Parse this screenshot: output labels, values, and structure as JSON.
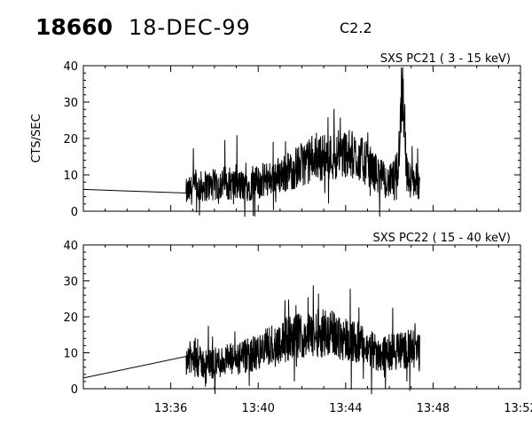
{
  "header": {
    "event_id": "18660",
    "date": "18-DEC-99",
    "flare_class": "C2.2"
  },
  "chart_data": [
    {
      "type": "line",
      "title": "SXS PC21  (  3 - 15 keV)",
      "ylabel": "CTS/SEC",
      "xlabel": "",
      "x_unit": "minutes after 13:32",
      "xlim": [
        0,
        20
      ],
      "ylim": [
        0,
        40
      ],
      "yticks": [
        0,
        10,
        20,
        30,
        40
      ],
      "grid": false,
      "series": [
        {
          "x": [
            0,
            4.7,
            5.0,
            5.5,
            6.0,
            6.5,
            7.0,
            7.5,
            8.0,
            8.5,
            9.0,
            9.5,
            10.0,
            10.5,
            11.0,
            11.5,
            12.0,
            12.5,
            13.0,
            13.3,
            13.5,
            13.7,
            13.9,
            14.0,
            14.2,
            14.4,
            14.6,
            14.8,
            15.0,
            15.2,
            15.4
          ],
          "y": [
            6,
            5,
            6,
            7,
            7,
            8,
            7,
            7,
            8,
            9,
            10,
            11,
            13,
            14,
            15,
            15,
            16,
            15,
            13,
            11,
            10,
            9,
            8,
            8,
            9,
            12,
            38,
            10,
            8,
            9,
            7
          ]
        }
      ]
    },
    {
      "type": "line",
      "title": "SXS PC22  ( 15 - 40 keV)",
      "ylabel": "",
      "xlabel": "",
      "x_unit": "minutes after 13:32",
      "xlim": [
        0,
        20
      ],
      "ylim": [
        0,
        40
      ],
      "yticks": [
        0,
        10,
        20,
        30,
        40
      ],
      "xtick_labels": [
        "13:36",
        "13:40",
        "13:44",
        "13:48",
        "13:52"
      ],
      "grid": false,
      "series": [
        {
          "x": [
            0,
            4.7,
            5.0,
            5.5,
            6.0,
            6.5,
            7.0,
            7.5,
            8.0,
            8.5,
            9.0,
            9.5,
            10.0,
            10.5,
            11.0,
            11.5,
            12.0,
            12.5,
            13.0,
            13.5,
            14.0,
            14.5,
            15.0,
            15.4
          ],
          "y": [
            3,
            9,
            8,
            7,
            7,
            8,
            8,
            9,
            10,
            12,
            13,
            14,
            15,
            15,
            16,
            15,
            14,
            13,
            11,
            10,
            10,
            11,
            11,
            10
          ]
        }
      ]
    }
  ]
}
